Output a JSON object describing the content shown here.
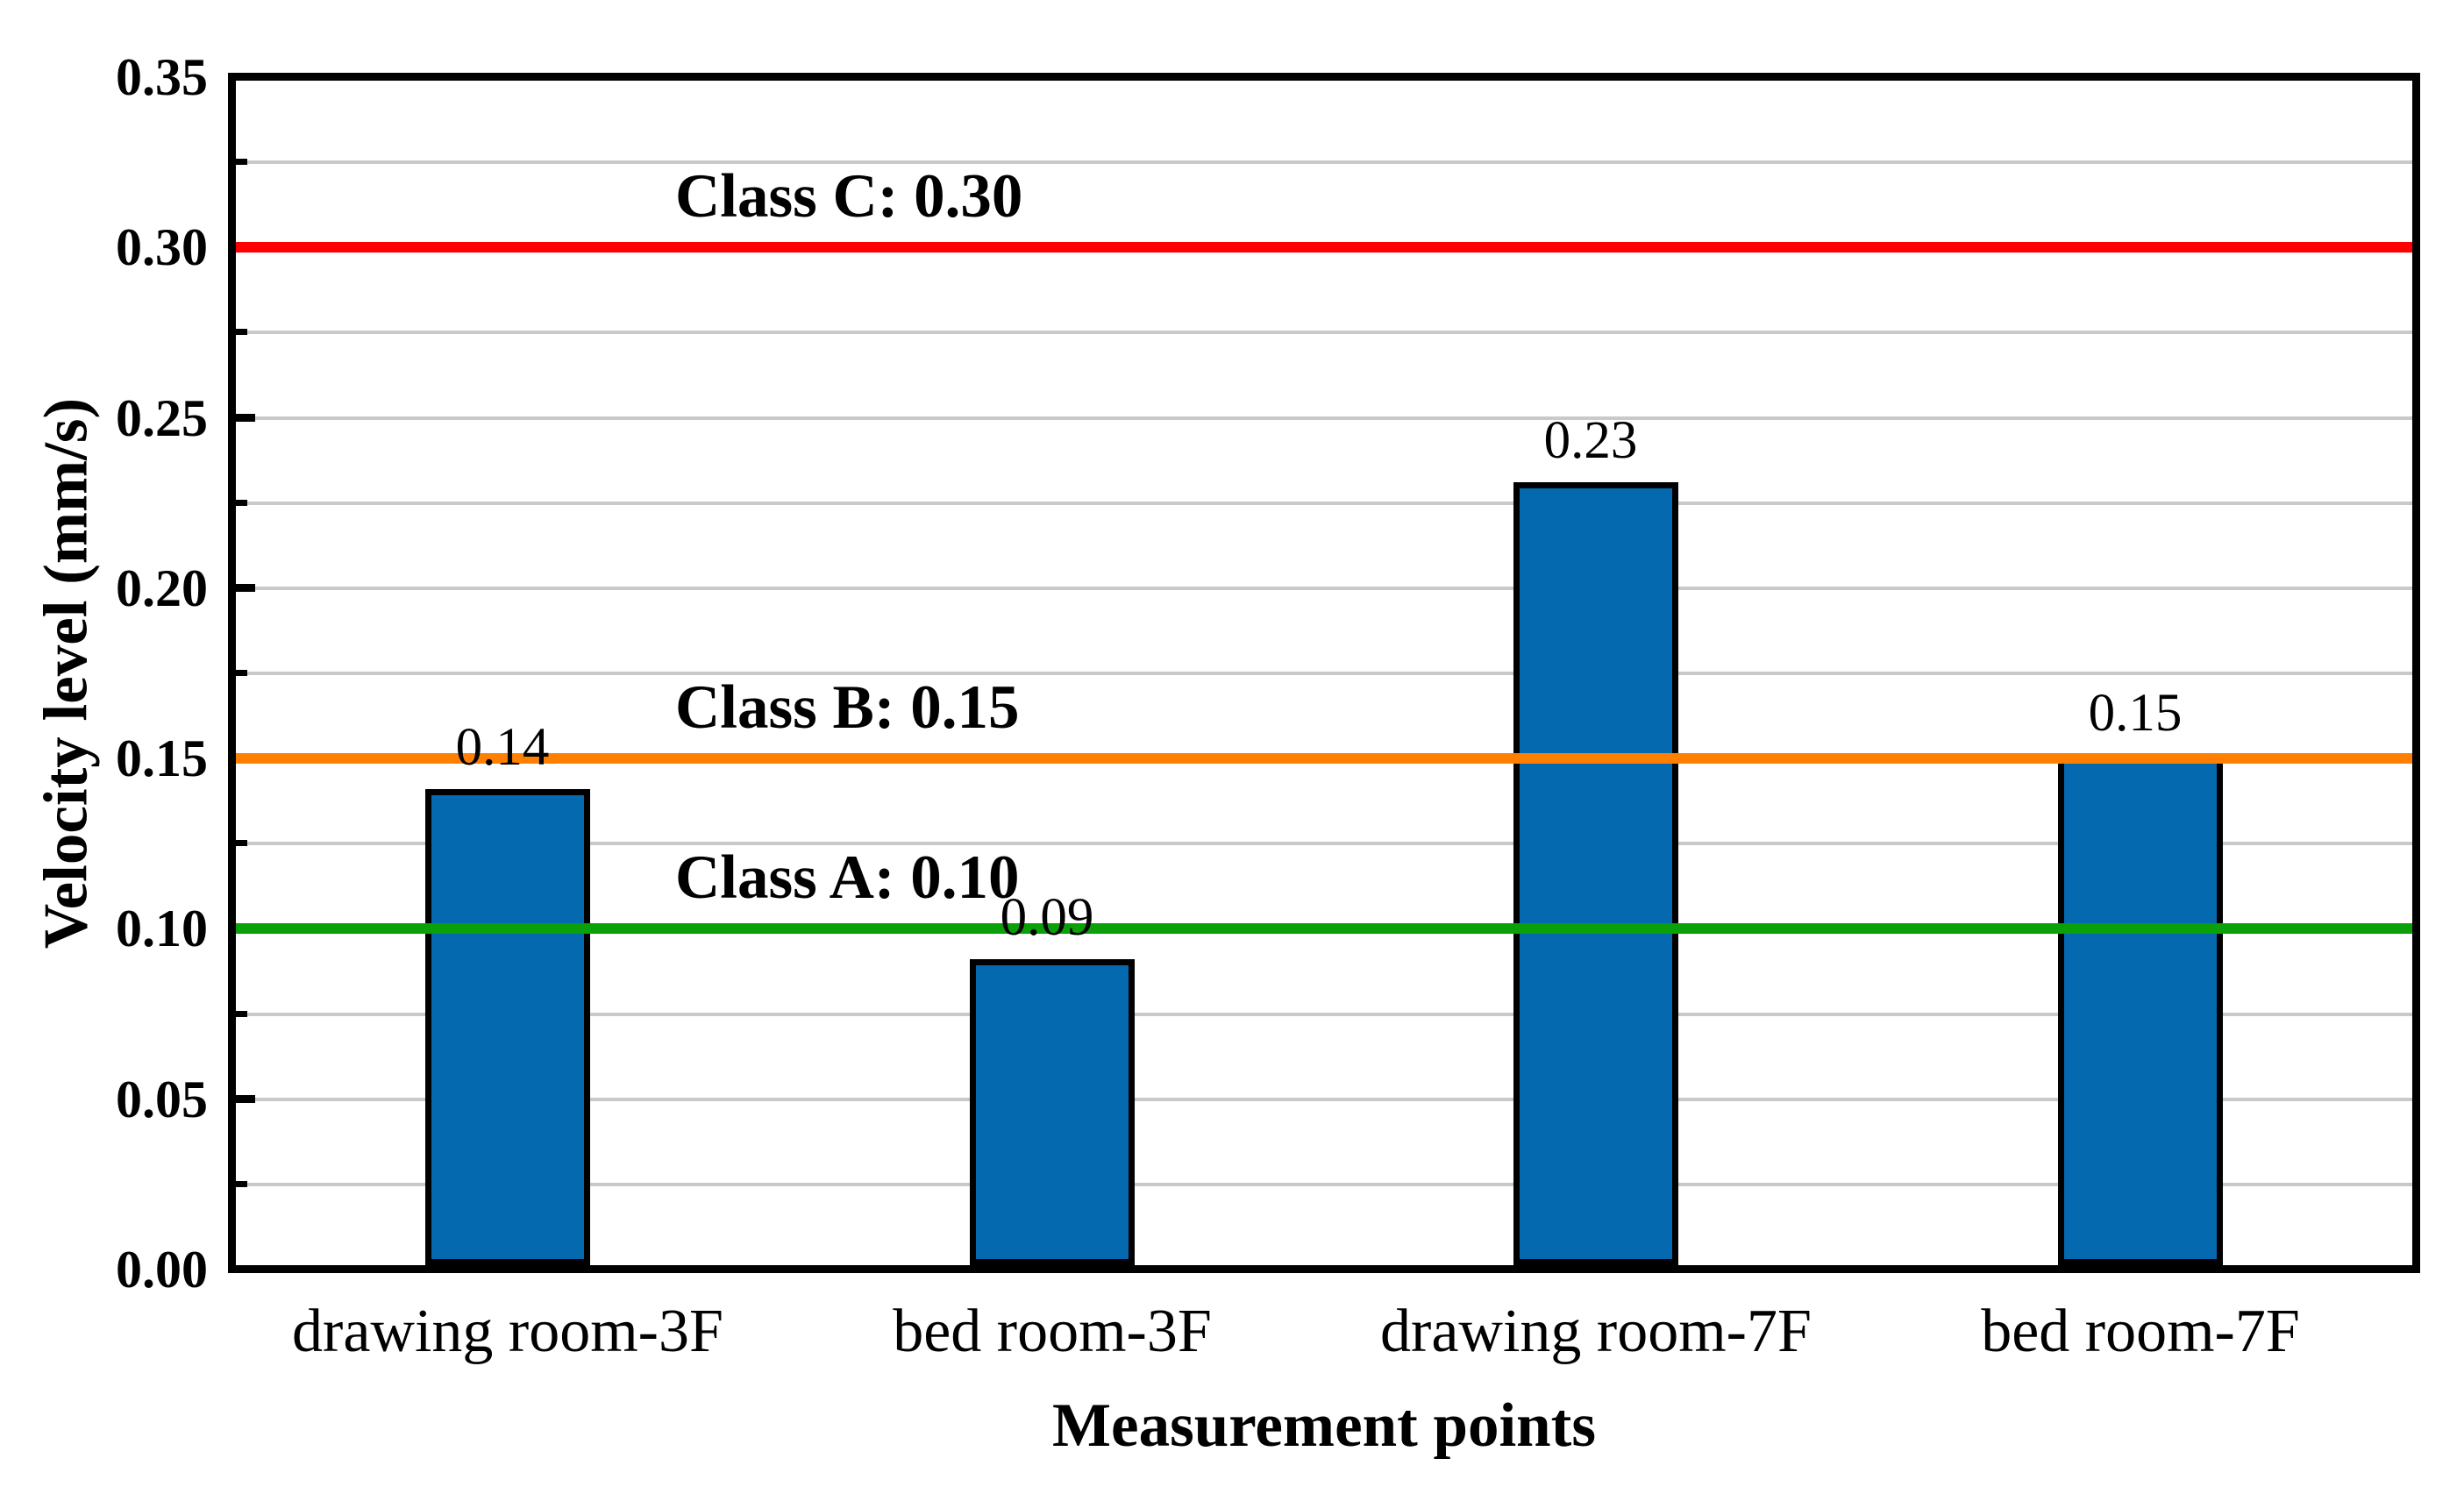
{
  "chart_data": {
    "type": "bar",
    "xlabel": "Measurement points",
    "ylabel": "Velocity level (mm/s)",
    "categories": [
      "drawing room-3F",
      "bed room-3F",
      "drawing room-7F",
      "bed room-7F"
    ],
    "values": [
      0.14,
      0.09,
      0.23,
      0.15
    ],
    "bar_value_labels": [
      "0.14",
      "0.09",
      "0.23",
      "0.15"
    ],
    "ylim": [
      0.0,
      0.35
    ],
    "ytick_major_step": 0.05,
    "ytick_minor_step": 0.025,
    "ytick_labels": [
      "0.00",
      "0.05",
      "0.10",
      "0.15",
      "0.20",
      "0.25",
      "0.30",
      "0.35"
    ],
    "grid": "on",
    "legend": "none",
    "bar_color": "#0569AF",
    "bar_border_color": "#000000",
    "gridline_color": "#C9C9C9",
    "axis_color": "#000000",
    "reference_lines": [
      {
        "label": "Class C: 0.30",
        "value": 0.3,
        "color": "#FF0000"
      },
      {
        "label": "Class B: 0.15",
        "value": 0.15,
        "color": "#FF8000"
      },
      {
        "label": "Class A: 0.10",
        "value": 0.1,
        "color": "#0AA00A"
      }
    ]
  }
}
